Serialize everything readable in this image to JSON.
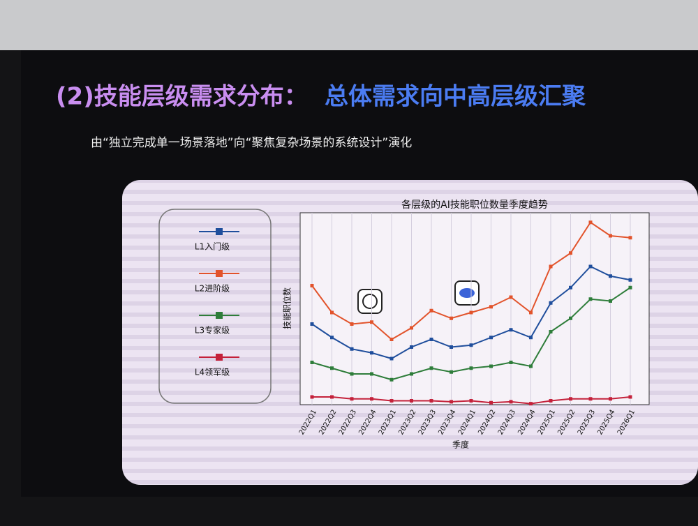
{
  "slide": {
    "title_part1": "(2)技能层级需求分布：",
    "title_part2": "总体需求向中高层级汇聚",
    "subtitle": "由“独立完成单一场景落地”向“聚焦复杂场景的系统设计”演化"
  },
  "chart_data": {
    "type": "line",
    "title": "各层级的AI技能职位数量季度趋势",
    "x_label": "季度",
    "y_label": "技能职位数",
    "categories": [
      "2022Q1",
      "2022Q2",
      "2022Q3",
      "2022Q4",
      "2023Q1",
      "2023Q2",
      "2023Q3",
      "2023Q4",
      "2024Q1",
      "2024Q2",
      "2024Q3",
      "2024Q4",
      "2025Q1",
      "2025Q2",
      "2025Q3",
      "2025Q4",
      "2026Q1"
    ],
    "ylim": [
      0,
      100
    ],
    "grid": true,
    "series": [
      {
        "name": "L1入门级",
        "color": "#1f4e9c",
        "values": [
          42,
          35,
          29,
          27,
          24,
          30,
          34,
          30,
          31,
          35,
          39,
          35,
          53,
          61,
          72,
          67,
          65
        ]
      },
      {
        "name": "L2进阶级",
        "color": "#e2532b",
        "values": [
          62,
          48,
          42,
          43,
          34,
          40,
          49,
          45,
          48,
          51,
          56,
          48,
          72,
          79,
          95,
          88,
          87
        ]
      },
      {
        "name": "L3专家级",
        "color": "#2e7d3a",
        "values": [
          22,
          19,
          16,
          16,
          13,
          16,
          19,
          17,
          19,
          20,
          22,
          20,
          38,
          45,
          55,
          54,
          61
        ]
      },
      {
        "name": "L4领军级",
        "color": "#c4213a",
        "values": [
          4,
          4,
          3,
          3,
          2,
          2,
          2,
          1.5,
          2,
          1,
          1.5,
          0.5,
          2,
          3,
          3,
          3,
          4
        ]
      }
    ]
  }
}
